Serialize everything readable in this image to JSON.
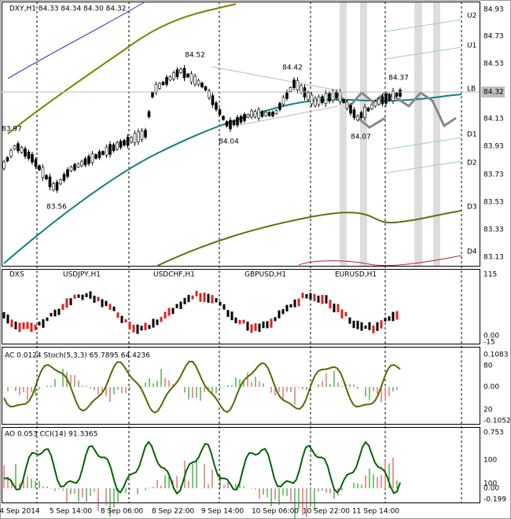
{
  "main": {
    "header": "DXY,H1 84.33 84.34 84.30 84.32",
    "price_axis": [
      "84.93",
      "84.73",
      "84.53",
      "84.13",
      "83.93",
      "83.73",
      "83.53",
      "83.33",
      "83.13"
    ],
    "current_price": "84.32",
    "levels": [
      "U2",
      "U1",
      "LB",
      "D1",
      "D2",
      "D3",
      "D4"
    ],
    "annotations": [
      "83.97",
      "83.56",
      "84.52",
      "84.04",
      "84.42",
      "84.07",
      "84.37"
    ]
  },
  "pairs": {
    "header": "DXS",
    "labels": [
      "USDJPY,H1",
      "USDCHF,H1",
      "GBPUSD,H1",
      "EURUSD,H1"
    ],
    "axis": [
      "115",
      "0.00",
      "-15"
    ]
  },
  "oscillator": {
    "header": "AC 0.0124  Stoch(5,3,3) 65.7895 64.4236",
    "axis": [
      "0.1083",
      "80",
      "0.00",
      "20",
      "-0.1052"
    ]
  },
  "momentum": {
    "header": "AO 0.053  CCI(14) 91.3365",
    "axis": [
      "0.753",
      "100",
      "100",
      "0.00",
      "-0.199"
    ]
  },
  "time_axis": [
    "4 Sep 2014",
    "5 Sep 14:00",
    "8 Sep 06:00",
    "8 Sep 22:00",
    "9 Sep 14:00",
    "10 Sep 06:00",
    "10 Sep 22:00",
    "11 Sep 14:00"
  ]
}
